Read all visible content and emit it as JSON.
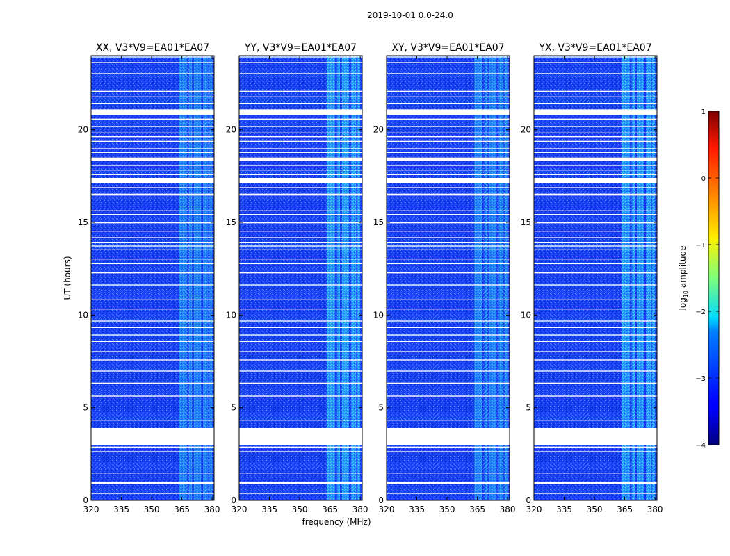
{
  "chart_data": {
    "type": "heatmap",
    "suptitle": "2019-10-01 0.0-24.0",
    "xlabel": "frequency (MHz)",
    "ylabel": "UT (hours)",
    "colorbar_label_main": "log",
    "colorbar_label_sub": "10",
    "colorbar_label_tail": " amplitude",
    "colorbar_range": [
      -4,
      1
    ],
    "colorbar_ticks": [
      -4,
      -3,
      -2,
      -1,
      0,
      1
    ],
    "colorbar_tick_labels": [
      "−4",
      "−3",
      "−2",
      "−1",
      "0",
      "1"
    ],
    "xlim": [
      320,
      381
    ],
    "ylim": [
      0,
      24
    ],
    "xticks": [
      320,
      335,
      350,
      365,
      380
    ],
    "yticks": [
      0,
      5,
      10,
      15,
      20
    ],
    "panels": [
      {
        "title": "XX, V3*V9=EA01*EA07",
        "pol": "XX"
      },
      {
        "title": "YY, V3*V9=EA01*EA07",
        "pol": "YY"
      },
      {
        "title": "XY, V3*V9=EA01*EA07",
        "pol": "XY"
      },
      {
        "title": "YX, V3*V9=EA01*EA07",
        "pol": "YX"
      }
    ],
    "flagged_time_ranges_hours": [
      [
        3.0,
        3.9
      ],
      [
        0.9,
        1.0
      ],
      [
        1.45,
        1.5
      ],
      [
        0.35,
        0.4
      ],
      [
        2.6,
        2.65
      ],
      [
        2.85,
        2.9
      ],
      [
        4.3,
        4.35
      ],
      [
        5.6,
        5.65
      ],
      [
        6.3,
        6.35
      ],
      [
        6.95,
        7.0
      ],
      [
        7.55,
        7.6
      ],
      [
        8.0,
        8.05
      ],
      [
        8.55,
        8.6
      ],
      [
        8.9,
        8.95
      ],
      [
        9.3,
        9.35
      ],
      [
        9.65,
        9.7
      ],
      [
        10.3,
        10.35
      ],
      [
        10.8,
        10.85
      ],
      [
        11.6,
        11.65
      ],
      [
        12.25,
        12.3
      ],
      [
        12.75,
        12.8
      ],
      [
        13.0,
        13.05
      ],
      [
        13.5,
        13.55
      ],
      [
        13.7,
        13.75
      ],
      [
        13.9,
        13.95
      ],
      [
        14.15,
        14.2
      ],
      [
        14.5,
        14.55
      ],
      [
        14.95,
        15.0
      ],
      [
        15.4,
        15.45
      ],
      [
        15.6,
        15.65
      ],
      [
        16.45,
        16.55
      ],
      [
        16.85,
        16.9
      ],
      [
        17.1,
        17.4
      ],
      [
        17.55,
        17.6
      ],
      [
        17.8,
        17.85
      ],
      [
        18.05,
        18.1
      ],
      [
        18.3,
        18.5
      ],
      [
        18.75,
        18.8
      ],
      [
        18.95,
        19.0
      ],
      [
        19.35,
        19.4
      ],
      [
        19.6,
        19.65
      ],
      [
        19.8,
        19.85
      ],
      [
        20.15,
        20.2
      ],
      [
        20.55,
        20.6
      ],
      [
        20.8,
        21.1
      ],
      [
        21.4,
        21.45
      ],
      [
        21.75,
        21.8
      ],
      [
        22.05,
        22.1
      ],
      [
        23.0,
        23.05
      ],
      [
        23.6,
        23.65
      ],
      [
        23.9,
        23.95
      ]
    ],
    "bright_frequency_bands_mhz": [
      [
        363.5,
        367.5
      ],
      [
        368.5,
        370.0
      ],
      [
        371.0,
        374.5
      ],
      [
        375.5,
        378.0
      ],
      [
        378.5,
        380.0
      ]
    ],
    "colormap": "jet"
  }
}
